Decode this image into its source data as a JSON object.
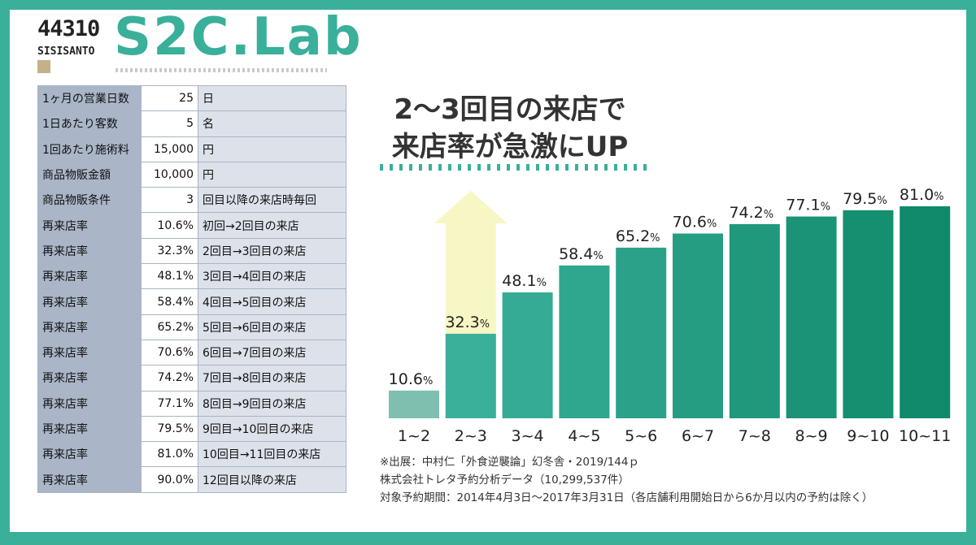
{
  "logo": {
    "number": "44310",
    "sub": "SISISANTO",
    "brand": "S2C.Lab"
  },
  "headline": {
    "line1": "2〜3回目の来店で",
    "line2": "来店率が急激にUP"
  },
  "table_rows": [
    {
      "label": "1ヶ月の営業日数",
      "value": "25",
      "unit": "日"
    },
    {
      "label": "1日あたり客数",
      "value": "5",
      "unit": "名"
    },
    {
      "label": "1回あたり施術料",
      "value": "15,000",
      "unit": "円"
    },
    {
      "label": "商品物販金額",
      "value": "10,000",
      "unit": "円"
    },
    {
      "label": "商品物販条件",
      "value": "3",
      "unit": "回目以降の来店時毎回"
    },
    {
      "label": "再来店率",
      "value": "10.6%",
      "unit": "初回→2回目の来店"
    },
    {
      "label": "再来店率",
      "value": "32.3%",
      "unit": "2回目→3回目の来店"
    },
    {
      "label": "再来店率",
      "value": "48.1%",
      "unit": "3回目→4回目の来店"
    },
    {
      "label": "再来店率",
      "value": "58.4%",
      "unit": "4回目→5回目の来店"
    },
    {
      "label": "再来店率",
      "value": "65.2%",
      "unit": "5回目→6回目の来店"
    },
    {
      "label": "再来店率",
      "value": "70.6%",
      "unit": "6回目→7回目の来店"
    },
    {
      "label": "再来店率",
      "value": "74.2%",
      "unit": "7回目→8回目の来店"
    },
    {
      "label": "再来店率",
      "value": "77.1%",
      "unit": "8回目→9回目の来店"
    },
    {
      "label": "再来店率",
      "value": "79.5%",
      "unit": "9回目→10回目の来店"
    },
    {
      "label": "再来店率",
      "value": "81.0%",
      "unit": "10回目→11回目の来店"
    },
    {
      "label": "再来店率",
      "value": "90.0%",
      "unit": "12回目以降の来店"
    }
  ],
  "chart_data": {
    "type": "bar",
    "categories": [
      "1~2",
      "2~3",
      "3~4",
      "4~5",
      "5~6",
      "6~7",
      "7~8",
      "8~9",
      "9~10",
      "10~11"
    ],
    "values": [
      10.6,
      32.3,
      48.1,
      58.4,
      65.2,
      70.6,
      74.2,
      77.1,
      79.5,
      81.0
    ],
    "value_labels": [
      "10.6",
      "32.3",
      "48.1",
      "58.4",
      "65.2",
      "70.6",
      "74.2",
      "77.1",
      "79.5",
      "81.0"
    ],
    "unit": "%",
    "highlight_index": 1,
    "ylim": [
      0,
      90
    ],
    "colors": {
      "first_bar": "#7fbfb0",
      "bar_start": "#3aaf9a",
      "bar_end": "#0f8a6a",
      "highlight_arrow": "#f6f7c4"
    }
  },
  "source": {
    "line1": "※出展：中村仁「外食逆襲論」幻冬舎・2019/144ｐ",
    "line2": "株式会社トレタ予約分析データ（10,299,537件）",
    "line3": "対象予約期間：2014年4月3日〜2017年3月31日（各店舗利用開始日から6か月以内の予約は除く）"
  }
}
